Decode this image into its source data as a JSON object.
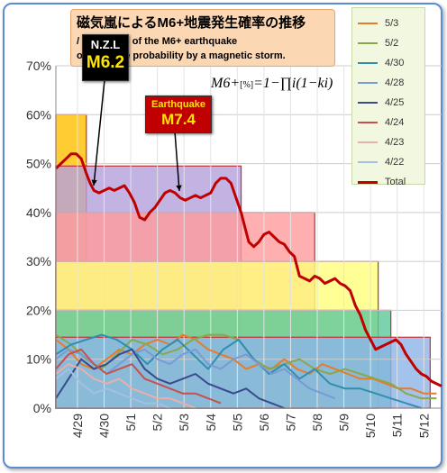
{
  "title": {
    "jp": "磁気嵐によるM6+地震発生確率の推移",
    "en_line1": "/ Transition of the M6+ earthquake",
    "en_line2": "occurrence probability by a magnetic storm."
  },
  "formula": {
    "lhs": "M6+",
    "unit": "[%]",
    "rhs": "=1−∏i(1−ki)"
  },
  "callouts": [
    {
      "top": "N.Z.L",
      "bottom": "M6.2"
    },
    {
      "top": "Earthquake",
      "bottom": "M7.4"
    }
  ],
  "colors": {
    "total": "#c00000",
    "frame": "#5b8bd0",
    "title_bg": "#fbd7b4",
    "legend_bg": "#f2f8df"
  },
  "chart_data": {
    "type": "line",
    "ylim": [
      0,
      70
    ],
    "yticks": [
      "0%",
      "10%",
      "20%",
      "30%",
      "40%",
      "50%",
      "60%",
      "70%"
    ],
    "xlim": [
      0,
      15.2
    ],
    "categories": [
      "4/29",
      "4/30",
      "5/1",
      "5/2",
      "5/3",
      "5/4",
      "5/5",
      "5/6",
      "5/7",
      "5/8",
      "5/9",
      "5/10",
      "5/11",
      "5/12"
    ],
    "category_x": [
      0.85,
      1.9,
      2.95,
      4.0,
      5.05,
      6.1,
      7.15,
      8.2,
      9.25,
      10.3,
      11.35,
      12.4,
      13.45,
      14.5
    ],
    "legend_placement": "top-right",
    "bands": [
      {
        "x0": 0,
        "x1": 1.2,
        "y0": 0,
        "y1": 60,
        "color": "#ffc000"
      },
      {
        "x0": 0,
        "x1": 7.3,
        "y0": 0,
        "y1": 49.5,
        "color": "#b4a0dc"
      },
      {
        "x0": 0,
        "x1": 10.2,
        "y0": 0,
        "y1": 40,
        "color": "#ff9b9b"
      },
      {
        "x0": 0,
        "x1": 12.7,
        "y0": 0,
        "y1": 30,
        "color": "#ffff7a"
      },
      {
        "x0": 0,
        "x1": 13.2,
        "y0": 0,
        "y1": 20,
        "color": "#5cc89a"
      },
      {
        "x0": 0,
        "x1": 14.75,
        "y0": 0,
        "y1": 14.5,
        "color": "#8cb4e8"
      }
    ],
    "total": {
      "name": "Total",
      "color": "#c00000",
      "x": [
        0,
        0.2,
        0.4,
        0.6,
        0.8,
        1.0,
        1.2,
        1.35,
        1.5,
        1.7,
        1.9,
        2.1,
        2.3,
        2.5,
        2.7,
        2.9,
        3.1,
        3.3,
        3.5,
        3.7,
        3.9,
        4.1,
        4.3,
        4.5,
        4.7,
        4.9,
        5.1,
        5.3,
        5.5,
        5.7,
        5.9,
        6.1,
        6.3,
        6.5,
        6.7,
        6.9,
        7.1,
        7.3,
        7.45,
        7.6,
        7.8,
        8.0,
        8.2,
        8.4,
        8.6,
        8.8,
        9.0,
        9.2,
        9.4,
        9.6,
        9.8,
        10.0,
        10.2,
        10.4,
        10.6,
        10.8,
        11.0,
        11.2,
        11.4,
        11.6,
        11.8,
        12.0,
        12.2,
        12.4,
        12.6,
        12.8,
        13.0,
        13.2,
        13.4,
        13.6,
        13.8,
        14.0,
        14.2,
        14.4,
        14.6,
        14.8,
        15.0,
        15.2
      ],
      "y": [
        49,
        50,
        51,
        52,
        52,
        51,
        48,
        46,
        44.5,
        44,
        44.5,
        45,
        44.5,
        45,
        45.5,
        44,
        42,
        39,
        38.5,
        40,
        41,
        42.5,
        44,
        44.5,
        44,
        43,
        42.5,
        43,
        43.5,
        43,
        43.5,
        44,
        46,
        47,
        47,
        46,
        43,
        40,
        37,
        34,
        33,
        34,
        35.5,
        36,
        35,
        34,
        33.5,
        32,
        31,
        27,
        26.5,
        26,
        27,
        26.5,
        25.5,
        26,
        26.5,
        25.5,
        25,
        24,
        21,
        19,
        16,
        14,
        12,
        12.5,
        13,
        13.5,
        14,
        13,
        11,
        9.5,
        8,
        7,
        6.5,
        5.5,
        5,
        4.5
      ]
    },
    "series": [
      {
        "name": "5/3",
        "color": "#e87b2a",
        "x": [
          0,
          0.5,
          1.0,
          1.5,
          2.0,
          2.5,
          3.0,
          3.5,
          4.0,
          4.5,
          5.0,
          5.5,
          6.0,
          6.5,
          7.0,
          7.5,
          8.0,
          8.5,
          9.0,
          9.5,
          10.0,
          10.5,
          11.0,
          11.5,
          12.0,
          12.5,
          13.0,
          13.5,
          14.0,
          14.5,
          15.0
        ],
        "y": [
          14,
          12,
          9,
          8,
          10,
          12,
          11,
          13,
          14,
          13,
          15,
          14,
          12,
          11,
          10,
          8,
          9,
          8,
          10,
          8,
          7,
          9,
          8,
          7,
          6,
          6,
          5,
          4,
          4,
          3,
          3
        ]
      },
      {
        "name": "5/2",
        "color": "#8aa74a",
        "x": [
          0,
          0.6,
          1.2,
          1.8,
          2.4,
          3.0,
          3.6,
          4.2,
          4.8,
          5.4,
          6.0,
          6.6,
          7.2,
          7.8,
          8.4,
          9.0,
          9.6,
          10.2,
          10.8,
          11.4,
          12.0,
          12.6,
          13.2,
          13.8,
          14.4,
          15.0
        ],
        "y": [
          15,
          13,
          10,
          8,
          11,
          14,
          13,
          11,
          12,
          14,
          15,
          15,
          14,
          10,
          8,
          9,
          10,
          8,
          7,
          8,
          7,
          6,
          5,
          3,
          2,
          2
        ]
      },
      {
        "name": "4/30",
        "color": "#2f8fb0",
        "x": [
          0,
          0.6,
          1.2,
          1.8,
          2.4,
          3.0,
          3.6,
          4.2,
          4.8,
          5.4,
          6.0,
          6.6,
          7.2,
          7.8,
          8.4,
          9.0,
          9.6,
          10.2,
          10.8,
          11.4,
          12.0,
          12.6,
          13.2,
          13.8,
          14.4
        ],
        "y": [
          11,
          13,
          14,
          15,
          14,
          12,
          9,
          12,
          14,
          11,
          8,
          12,
          14,
          10,
          7,
          9,
          6,
          8,
          5,
          4,
          4,
          3,
          2,
          1,
          0
        ]
      },
      {
        "name": "4/28",
        "color": "#7a9ad4",
        "x": [
          0,
          0.5,
          1.0,
          1.5,
          2.0,
          2.5,
          3.0,
          3.5,
          4.0,
          4.5,
          5.0,
          5.5,
          6.0,
          6.5,
          7.0,
          7.5,
          8.0,
          8.5,
          9.0,
          9.5,
          10.0,
          10.5,
          11.0
        ],
        "y": [
          10,
          12,
          11,
          9,
          7,
          9,
          11,
          12,
          10,
          9,
          11,
          12,
          9,
          8,
          10,
          11,
          9,
          7,
          8,
          6,
          4,
          3,
          2
        ]
      },
      {
        "name": "4/25",
        "color": "#3a4a8c",
        "x": [
          0,
          0.5,
          1.0,
          1.5,
          2.0,
          2.5,
          3.0,
          3.5,
          4.0,
          4.5,
          5.0,
          5.5,
          6.0,
          6.5,
          7.0,
          7.5,
          8.0,
          8.5,
          9.0
        ],
        "y": [
          2,
          6,
          10,
          8,
          9,
          11,
          12,
          8,
          6,
          5,
          6,
          7,
          5,
          4,
          3,
          4,
          2,
          1,
          0
        ]
      },
      {
        "name": "4/24",
        "color": "#c84f4f",
        "x": [
          0,
          0.5,
          1.0,
          1.5,
          2.0,
          2.5,
          3.0,
          3.5,
          4.0,
          4.5,
          5.0,
          5.5,
          6.0,
          6.5
        ],
        "y": [
          8,
          11,
          12,
          9,
          7,
          8,
          9,
          6,
          5,
          4,
          3,
          3,
          2,
          1
        ]
      },
      {
        "name": "4/23",
        "color": "#e8b0ad",
        "x": [
          0,
          0.5,
          1.0,
          1.5,
          2.0,
          2.5,
          3.0,
          3.5,
          4.0,
          4.5,
          5.0,
          5.5
        ],
        "y": [
          7,
          9,
          8,
          6,
          5,
          6,
          4,
          3,
          2,
          2,
          1,
          0
        ]
      },
      {
        "name": "4/22",
        "color": "#a4c0e0",
        "x": [
          0,
          0.5,
          1.0,
          1.5,
          2.0,
          2.5,
          3.0,
          3.5,
          4.0,
          4.5
        ],
        "y": [
          6,
          8,
          5,
          3,
          4,
          3,
          2,
          1,
          1,
          0
        ]
      }
    ]
  }
}
